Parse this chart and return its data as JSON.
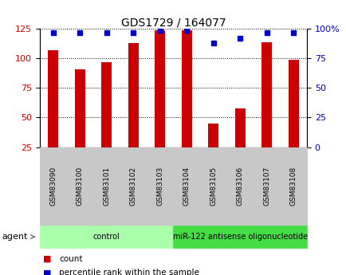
{
  "title": "GDS1729 / 164077",
  "samples": [
    "GSM83090",
    "GSM83100",
    "GSM83101",
    "GSM83102",
    "GSM83103",
    "GSM83104",
    "GSM83105",
    "GSM83106",
    "GSM83107",
    "GSM83108"
  ],
  "counts": [
    107,
    91,
    97,
    113,
    124,
    124,
    45,
    58,
    114,
    99
  ],
  "percentile_ranks": [
    97,
    97,
    97,
    97,
    99,
    99,
    88,
    92,
    97,
    97
  ],
  "bar_color": "#CC0000",
  "dot_color": "#0000CC",
  "ylim_left": [
    25,
    125
  ],
  "ylim_right": [
    0,
    100
  ],
  "yticks_left": [
    25,
    50,
    75,
    100,
    125
  ],
  "yticks_right": [
    0,
    25,
    50,
    75,
    100
  ],
  "grid_color": "black",
  "groups": [
    {
      "label": "control",
      "start": 0,
      "end": 5,
      "color": "#AAFFAA"
    },
    {
      "label": "miR-122 antisense oligonucleotide",
      "start": 5,
      "end": 10,
      "color": "#44DD44"
    }
  ],
  "legend_count_label": "count",
  "legend_pct_label": "percentile rank within the sample",
  "agent_label": "agent",
  "background_color": "#ffffff",
  "tick_area_color": "#C8C8C8",
  "bar_width": 0.4
}
